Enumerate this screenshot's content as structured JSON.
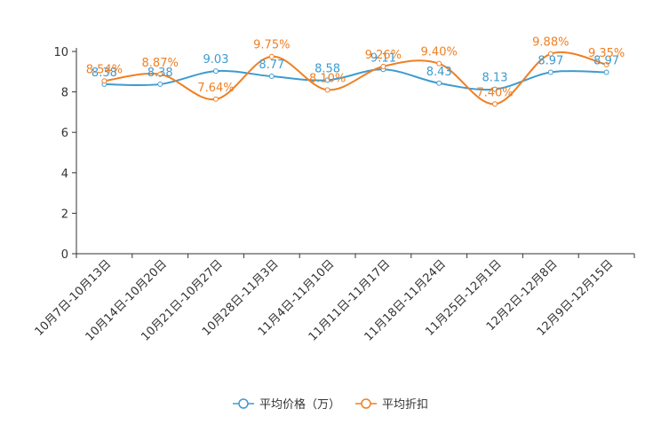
{
  "colors": {
    "series_price": "#3d9bd1",
    "series_discount": "#f07f22",
    "axis": "#333333"
  },
  "chart_data": {
    "type": "line",
    "title": "",
    "xlabel": "",
    "ylabel": "",
    "ylim": [
      0,
      10
    ],
    "yticks": [
      0,
      2,
      4,
      6,
      8,
      10
    ],
    "grid": false,
    "legend_position": "bottom-center",
    "categories": [
      "10月7日-10月13日",
      "10月14日-10月20日",
      "10月21日-10月27日",
      "10月28日-11月3日",
      "11月4日-11月10日",
      "11月11日-11月17日",
      "11月18日-11月24日",
      "11月25日-12月1日",
      "12月2日-12月8日",
      "12月9日-12月15日"
    ],
    "series": [
      {
        "name": "平均价格（万）",
        "values": [
          8.38,
          8.38,
          9.03,
          8.77,
          8.58,
          9.11,
          8.43,
          8.13,
          8.97,
          8.97
        ],
        "labels": [
          "8.38",
          "8.38",
          "9.03",
          "8.77",
          "8.58",
          "9.11",
          "8.43",
          "8.13",
          "8.97",
          "8.97"
        ]
      },
      {
        "name": "平均折扣",
        "values": [
          8.54,
          8.87,
          7.64,
          9.75,
          8.1,
          9.26,
          9.4,
          7.4,
          9.88,
          9.35
        ],
        "labels": [
          "8.54%",
          "8.87%",
          "7.64%",
          "9.75%",
          "8.10%",
          "9.26%",
          "9.40%",
          "7.40%",
          "9.88%",
          "9.35%"
        ]
      }
    ]
  }
}
